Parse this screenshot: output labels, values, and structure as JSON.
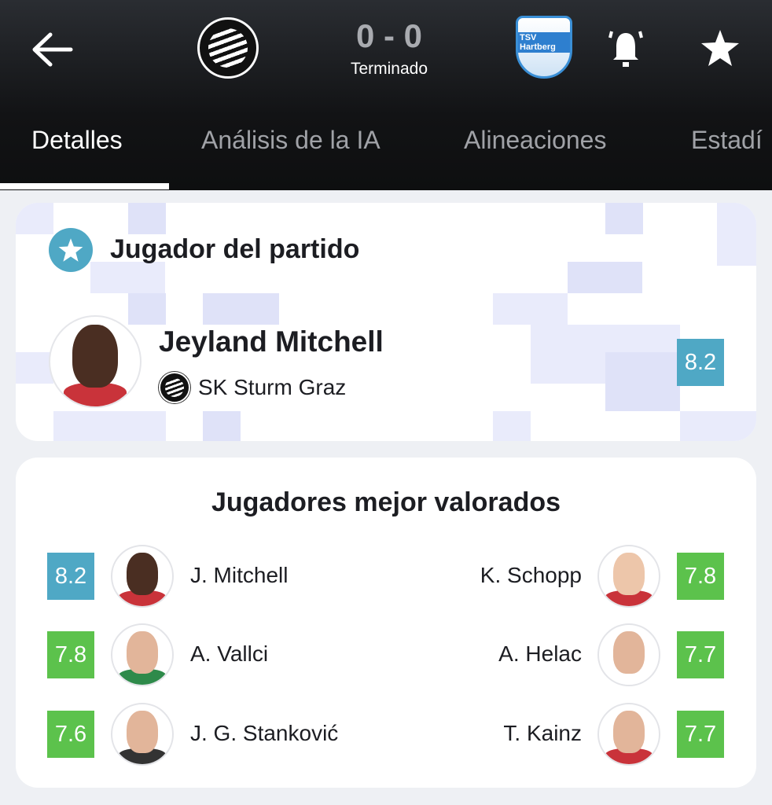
{
  "header": {
    "back_icon": "arrow-left-icon",
    "home_team": "SK Sturm Graz",
    "away_team": "TSV Hartberg",
    "away_crest_text": "TSV Hartberg",
    "score": "0 - 0",
    "status": "Terminado",
    "bell_icon": "bell-ringing-icon",
    "favorite_icon": "star-icon"
  },
  "tabs": [
    {
      "label": "Detalles",
      "active": true
    },
    {
      "label": "Análisis de la IA",
      "active": false
    },
    {
      "label": "Alineaciones",
      "active": false
    },
    {
      "label": "Estadí",
      "active": false
    }
  ],
  "motm": {
    "title": "Jugador del partido",
    "player": "Jeyland Mitchell",
    "team": "SK Sturm Graz",
    "rating": "8.2"
  },
  "top_rated": {
    "title": "Jugadores mejor valorados",
    "left": [
      {
        "name": "J. Mitchell",
        "rating": "8.2",
        "color": "#4fa8c5"
      },
      {
        "name": "A. Vallci",
        "rating": "7.8",
        "color": "#5cc24c"
      },
      {
        "name": "J. G. Stanković",
        "rating": "7.6",
        "color": "#5cc24c"
      }
    ],
    "right": [
      {
        "name": "K. Schopp",
        "rating": "7.8",
        "color": "#5cc24c"
      },
      {
        "name": "A. Helac",
        "rating": "7.7",
        "color": "#5cc24c"
      },
      {
        "name": "T. Kainz",
        "rating": "7.7",
        "color": "#5cc24c"
      }
    ]
  },
  "colors": {
    "motm_blue": "#4fa8c5",
    "good_green": "#5cc24c",
    "header_bg": "#121315"
  }
}
